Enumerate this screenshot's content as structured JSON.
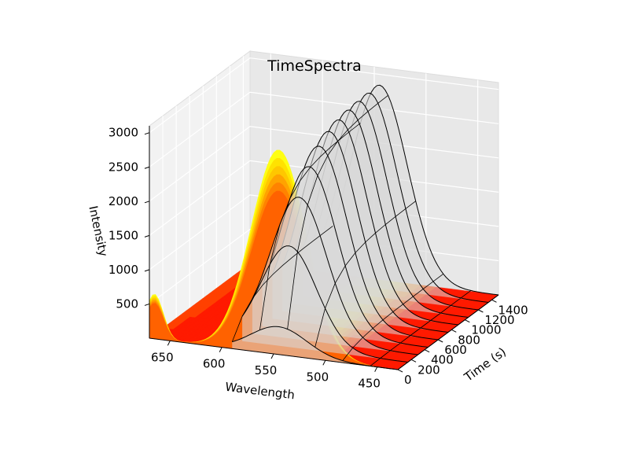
{
  "chart_data": {
    "type": "surface3d",
    "title": "TimeSpectra",
    "xlabel": "Wavelength",
    "ylabel": "Time (s)",
    "zlabel": "Intensity",
    "x_ticks": [
      "650",
      "600",
      "550",
      "500",
      "450"
    ],
    "y_ticks": [
      "0",
      "200",
      "400",
      "600",
      "800",
      "1000",
      "1200",
      "1400"
    ],
    "z_ticks": [
      "500",
      "1000",
      "1500",
      "2000",
      "2500",
      "3000"
    ],
    "xlim": [
      430,
      670
    ],
    "ylim": [
      0,
      1500
    ],
    "zlim": [
      0,
      3100
    ],
    "grid": true,
    "colormap": [
      "#ff1a00",
      "#ff4000",
      "#ff6000",
      "#ff8000",
      "#ffa000",
      "#ffc400",
      "#ffe000",
      "#ffff00"
    ],
    "wireframe_color": "#000000",
    "wireframe_fill": "#d9d9d9",
    "wireframe_time_slices": [
      0,
      150,
      300,
      450,
      600,
      750,
      900,
      1050,
      1200,
      1350,
      1500
    ],
    "spectrum_shape": {
      "peak_wavelength": 545,
      "peak_width": 38,
      "secondary_peak_wavelength": 665,
      "secondary_peak_width": 12,
      "max_intensity": 3000
    }
  }
}
